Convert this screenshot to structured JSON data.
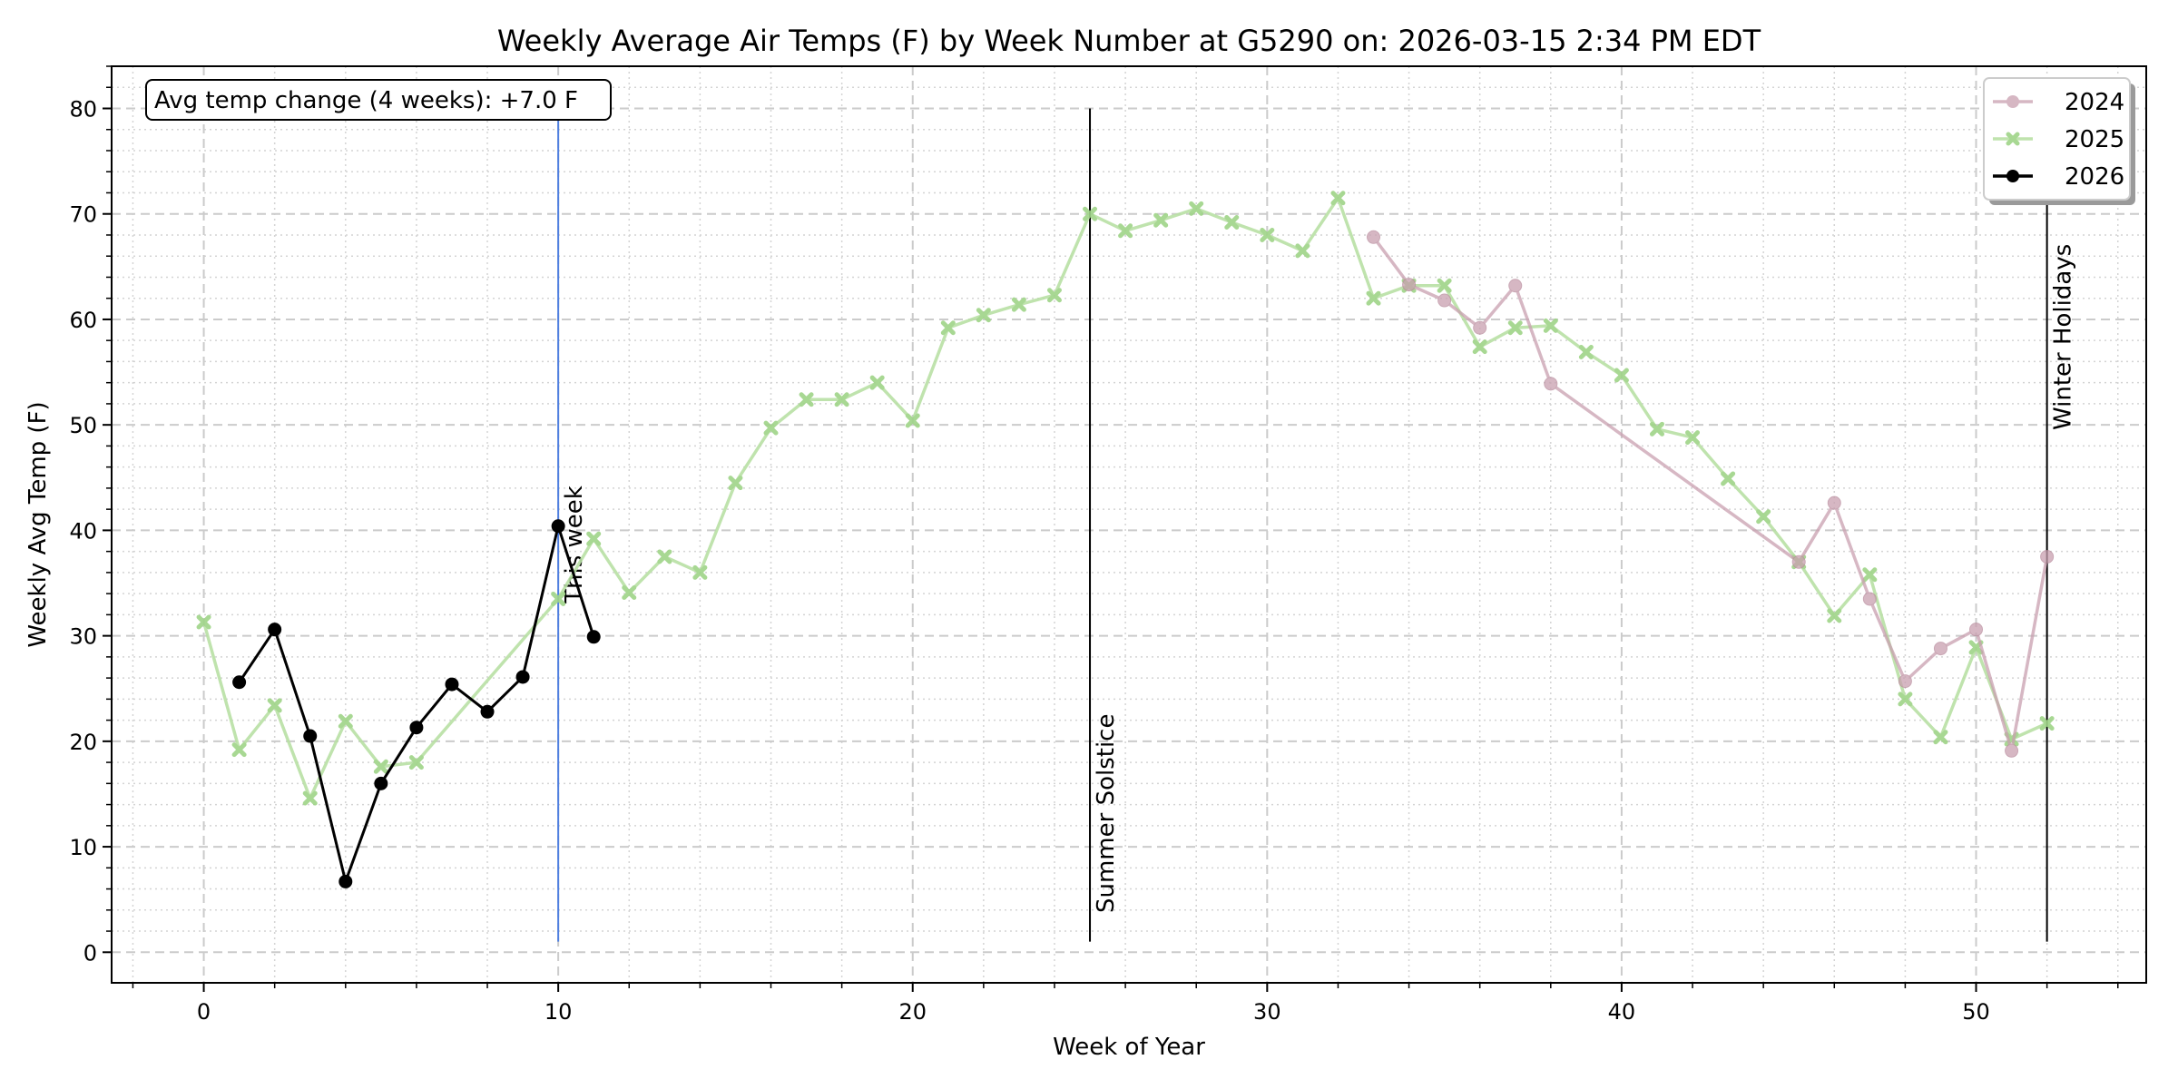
{
  "chart_data": {
    "type": "line",
    "title": "Weekly Average Air Temps (F) by Week Number at G5290 on: 2026-03-15 2:34 PM EDT",
    "xlabel": "Week of Year",
    "ylabel": "Weekly Avg Temp (F)",
    "xlim": [
      -2.6,
      54.8
    ],
    "ylim": [
      -2.9,
      84.0
    ],
    "x_ticks": [
      0,
      10,
      20,
      30,
      40,
      50
    ],
    "y_ticks": [
      0,
      10,
      20,
      30,
      40,
      50,
      60,
      70,
      80
    ],
    "grid": true,
    "legend_position": "top-right",
    "series": [
      {
        "name": "2024",
        "color": "#c9a0b0",
        "marker": "circle",
        "x": [
          33,
          34,
          35,
          36,
          37,
          38,
          45,
          46,
          47,
          48,
          49,
          50,
          51,
          52
        ],
        "y": [
          67.8,
          63.3,
          61.8,
          59.2,
          63.2,
          53.9,
          37.0,
          42.6,
          33.5,
          25.7,
          28.8,
          30.6,
          19.1,
          37.5
        ]
      },
      {
        "name": "2025",
        "color": "#b9e0a5",
        "marker": "x",
        "x": [
          0,
          1,
          2,
          3,
          4,
          5,
          6,
          10,
          11,
          12,
          13,
          14,
          15,
          16,
          17,
          18,
          19,
          20,
          21,
          22,
          23,
          24,
          25,
          26,
          27,
          28,
          29,
          30,
          31,
          32,
          33,
          34,
          35,
          36,
          37,
          38,
          39,
          40,
          41,
          42,
          43,
          44,
          45,
          46,
          47,
          48,
          49,
          50,
          51,
          52
        ],
        "y": [
          31.3,
          19.2,
          23.4,
          14.6,
          21.9,
          17.6,
          18.0,
          33.5,
          39.2,
          34.1,
          37.5,
          36.0,
          44.5,
          49.7,
          52.4,
          52.4,
          54.0,
          50.4,
          59.2,
          60.4,
          61.4,
          62.3,
          70.0,
          68.4,
          69.4,
          70.5,
          69.2,
          68.0,
          66.5,
          71.5,
          62.0,
          63.2,
          63.2,
          57.4,
          59.2,
          59.4,
          56.9,
          54.7,
          49.6,
          48.8,
          44.9,
          41.3,
          37.0,
          31.9,
          35.8,
          24.0,
          20.4,
          28.9,
          20.2,
          21.7
        ]
      },
      {
        "name": "2026",
        "color": "#000000",
        "marker": "circle",
        "x": [
          1,
          2,
          3,
          4,
          5,
          6,
          7,
          8,
          9,
          10,
          11
        ],
        "y": [
          25.6,
          30.6,
          20.5,
          6.7,
          16.0,
          21.3,
          25.4,
          22.8,
          26.1,
          40.4,
          29.9
        ]
      }
    ],
    "vlines": [
      {
        "x": 10,
        "label": "This week",
        "color": "#4f7fe0",
        "y_from": 1,
        "y_to": 80
      },
      {
        "x": 25,
        "label": "Summer Solstice",
        "color": "#000000",
        "y_from": 1,
        "y_to": 80
      },
      {
        "x": 52,
        "label": "Winter Holidays",
        "color": "#000000",
        "y_from": 1,
        "y_to": 80
      }
    ],
    "info_box": "Avg temp change (4 weeks): +7.0 F"
  }
}
